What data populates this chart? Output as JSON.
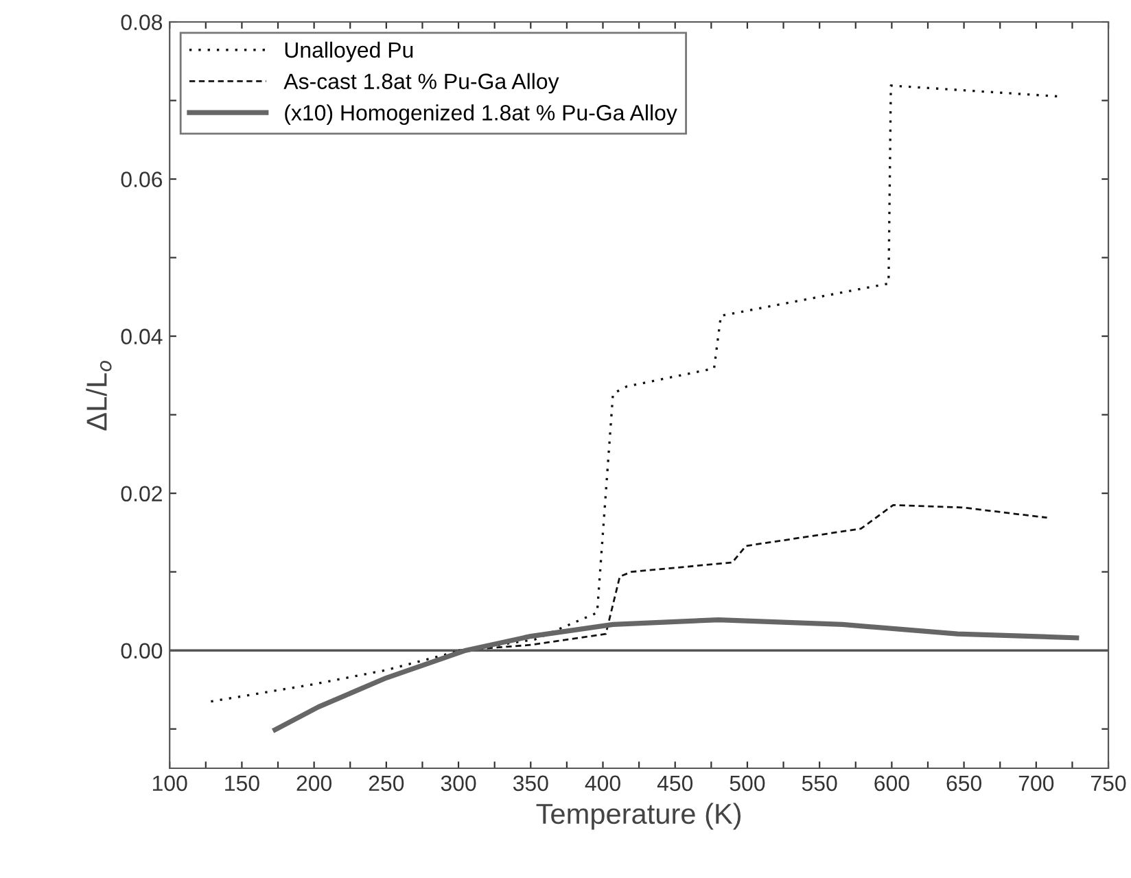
{
  "chart_data": {
    "type": "line",
    "xlabel": "Temperature (K)",
    "ylabel": "ΔL/L$_{o}$",
    "xlim": [
      100,
      750
    ],
    "xticks": [
      100,
      {
        "value": 125,
        "label": null
      },
      150,
      {
        "value": 175,
        "label": null
      },
      200,
      {
        "value": 225,
        "label": null
      },
      250,
      {
        "value": 275,
        "label": null
      },
      300,
      {
        "value": 325,
        "label": null
      },
      350,
      {
        "value": 375,
        "label": null
      },
      400,
      {
        "value": 425,
        "label": null
      },
      450,
      {
        "value": 475,
        "label": null
      },
      500,
      {
        "value": 525,
        "label": null
      },
      550,
      {
        "value": 575,
        "label": null
      },
      600,
      {
        "value": 625,
        "label": null
      },
      650,
      {
        "value": 675,
        "label": null
      },
      700,
      {
        "value": 725,
        "label": null
      },
      750
    ],
    "ylim": [
      -0.015,
      0.08
    ],
    "yticks": [
      {
        "value": -0.01,
        "label": null
      },
      {
        "value": 0,
        "label": "0.00"
      },
      {
        "value": 0.01,
        "label": null
      },
      0.02,
      {
        "value": 0.03,
        "label": null
      },
      0.04,
      {
        "value": 0.05,
        "label": null
      },
      0.06,
      {
        "value": 0.07,
        "label": null
      },
      0.08
    ],
    "grid": false,
    "legend": "top left",
    "marker": "none",
    "ref_lines": [
      {
        "axis": "y",
        "value": 0,
        "color": "#555555",
        "line_style": "solid"
      }
    ],
    "series": [
      {
        "name": "Unalloyed Pu",
        "color": "#111111",
        "line_style": "dotted",
        "x": [
          128.6,
          200,
          250,
          302,
          353,
          396,
          407,
          416.5,
          477,
          481.7,
          597.8,
          599.4,
          717
        ],
        "values": [
          -0.0065,
          -0.0043,
          -0.0025,
          0.0,
          0.0014,
          0.0048,
          0.0327,
          0.0336,
          0.0359,
          0.0426,
          0.0467,
          0.0719,
          0.0705
        ]
      },
      {
        "name": "As-cast 1.8at % Pu-Ga Alloy",
        "color": "#111111",
        "line_style": "dashed",
        "x": [
          300,
          350,
          402,
          411.7,
          419.7,
          489.6,
          499,
          578.7,
          601,
          648.7,
          707.5
        ],
        "values": [
          0.0,
          0.0007,
          0.0021,
          0.0094,
          0.01,
          0.0112,
          0.0133,
          0.0155,
          0.0185,
          0.0182,
          0.0169
        ]
      },
      {
        "name": "(x10) Homogenized 1.8at % Pu-Ga Alloy",
        "color": "#666666",
        "line_style": "solid",
        "x": [
          173,
          203,
          250,
          305,
          350,
          407,
          480,
          566,
          645.5,
          728
        ],
        "values": [
          -0.0101,
          -0.0072,
          -0.0035,
          0.0,
          0.0018,
          0.0033,
          0.0039,
          0.0033,
          0.0021,
          0.0016
        ]
      }
    ]
  }
}
